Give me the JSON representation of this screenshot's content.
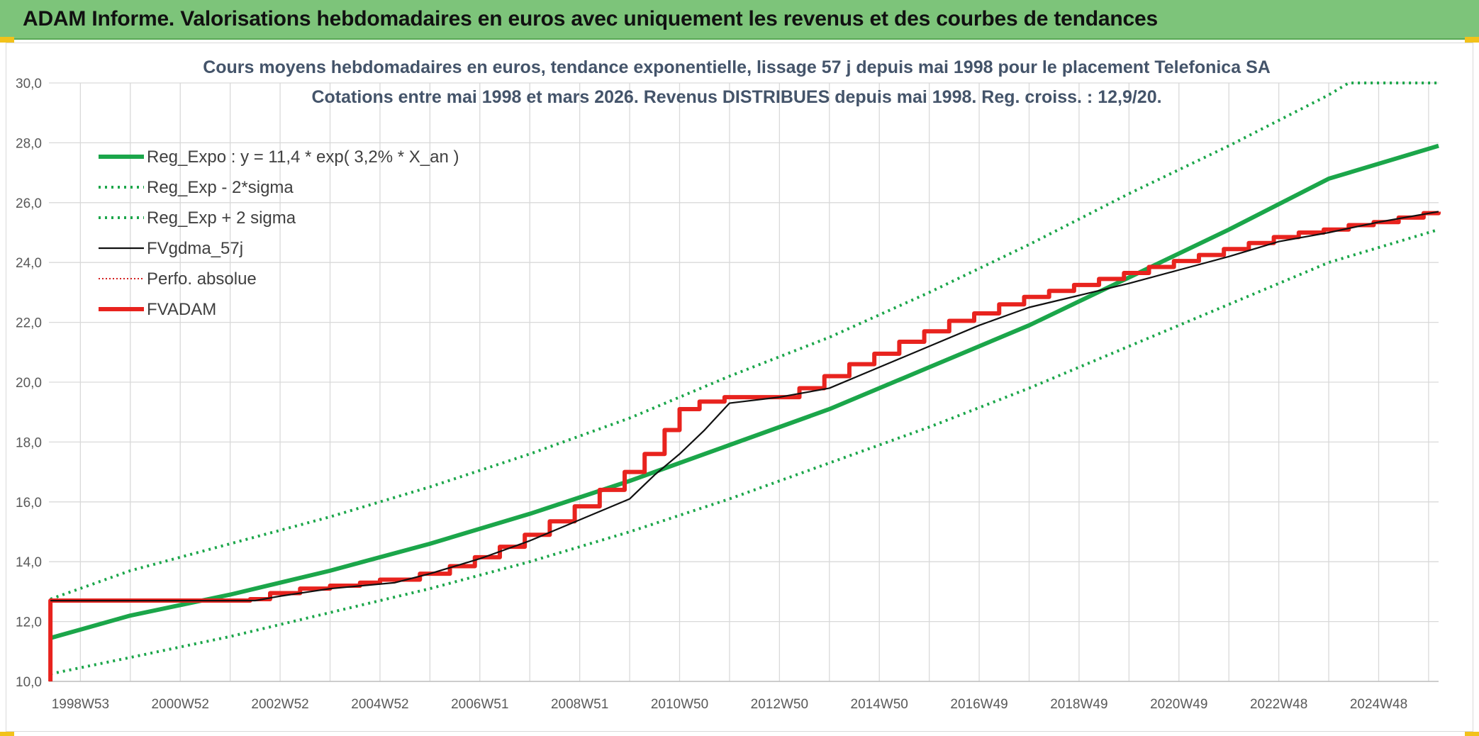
{
  "banner": {
    "title": "ADAM Informe. Valorisations hebdomadaires en euros avec uniquement les revenus et des courbes de tendances"
  },
  "colors": {
    "banner_bg": "#7dc47a",
    "trend_green": "#1ba64a",
    "fvadam_red": "#e8231e",
    "fvgdma_black": "#111111",
    "perfo_red": "#d42020",
    "grid": "#d9d9d9",
    "corner_accent": "#f2c21a"
  },
  "chart_data": {
    "type": "line",
    "title_line1": "Cours moyens hebdomadaires en euros, tendance exponentielle, lissage 57 j depuis mai 1998 pour le placement Telefonica SA",
    "title_line2": "Cotations entre mai 1998 et mars 2026. Revenus DISTRIBUES depuis mai 1998. Reg. croiss. : 12,9/20.",
    "xlabel": "",
    "ylabel": "",
    "xlim": [
      1998.37,
      2026.2
    ],
    "ylim": [
      10,
      30
    ],
    "y_ticks": [
      "10,0",
      "12,0",
      "14,0",
      "16,0",
      "18,0",
      "20,0",
      "22,0",
      "24,0",
      "26,0",
      "28,0",
      "30,0"
    ],
    "x_tick_labels": [
      "1998W53",
      "2000W52",
      "2002W52",
      "2004W52",
      "2006W51",
      "2008W51",
      "2010W50",
      "2012W50",
      "2014W50",
      "2016W49",
      "2018W49",
      "2020W49",
      "2022W48",
      "2024W48"
    ],
    "x_tick_positions": [
      1999.0,
      2001.0,
      2003.0,
      2005.0,
      2007.0,
      2009.0,
      2011.0,
      2013.0,
      2015.0,
      2017.0,
      2019.0,
      2021.0,
      2023.0,
      2025.0
    ],
    "grid": true,
    "legend_placement": "top-left",
    "legend": [
      {
        "label": "Reg_Expo : y = 11,4 * exp( 3,2% *  X_an )",
        "style": "solid-thick",
        "color": "#1ba64a"
      },
      {
        "label": "Reg_Exp - 2*sigma",
        "style": "dotted",
        "color": "#1ba64a"
      },
      {
        "label": "Reg_Exp + 2 sigma",
        "style": "dotted",
        "color": "#1ba64a"
      },
      {
        "label": "FVgdma_57j",
        "style": "solid",
        "color": "#111111"
      },
      {
        "label": "Perfo. absolue",
        "style": "dotted-thin",
        "color": "#d42020"
      },
      {
        "label": "FVADAM",
        "style": "solid-thick",
        "color": "#e8231e"
      }
    ],
    "series": [
      {
        "name": "Reg_Expo : y = 11,4 * exp( 3,2% *  X_an )",
        "x": [
          1998.4,
          2000.0,
          2002.0,
          2004.0,
          2006.0,
          2008.0,
          2010.0,
          2012.0,
          2014.0,
          2016.0,
          2018.0,
          2020.0,
          2022.0,
          2024.0,
          2026.2
        ],
        "values": [
          11.45,
          12.2,
          12.9,
          13.7,
          14.6,
          15.6,
          16.7,
          17.9,
          19.1,
          20.5,
          21.9,
          23.5,
          25.1,
          26.8,
          27.9
        ]
      },
      {
        "name": "Reg_Exp - 2*sigma",
        "x": [
          1998.4,
          2000.0,
          2002.0,
          2004.0,
          2006.0,
          2008.0,
          2010.0,
          2012.0,
          2014.0,
          2016.0,
          2018.0,
          2020.0,
          2022.0,
          2024.0,
          2026.2
        ],
        "values": [
          10.25,
          10.8,
          11.5,
          12.3,
          13.1,
          14.0,
          15.0,
          16.1,
          17.3,
          18.5,
          19.8,
          21.2,
          22.6,
          24.0,
          25.1
        ]
      },
      {
        "name": "Reg_Exp + 2 sigma",
        "x": [
          1998.4,
          2000.0,
          2002.0,
          2004.0,
          2006.0,
          2008.0,
          2010.0,
          2012.0,
          2014.0,
          2016.0,
          2018.0,
          2020.0,
          2022.0,
          2024.0,
          2024.4,
          2026.2
        ],
        "values": [
          12.75,
          13.7,
          14.6,
          15.5,
          16.5,
          17.6,
          18.8,
          20.2,
          21.5,
          23.0,
          24.6,
          26.3,
          27.9,
          29.6,
          30.0,
          30.0
        ]
      },
      {
        "name": "FVgdma_57j",
        "x": [
          1998.4,
          2002.5,
          2003.0,
          2004.0,
          2005.3,
          2006.0,
          2007.0,
          2008.0,
          2009.0,
          2010.0,
          2010.5,
          2011.0,
          2011.5,
          2012.0,
          2013.0,
          2014.0,
          2015.0,
          2016.0,
          2017.0,
          2018.0,
          2019.0,
          2020.0,
          2021.0,
          2022.0,
          2023.0,
          2024.0,
          2025.0,
          2026.2
        ],
        "values": [
          12.7,
          12.7,
          12.85,
          13.1,
          13.3,
          13.6,
          14.1,
          14.7,
          15.4,
          16.1,
          16.9,
          17.6,
          18.4,
          19.3,
          19.5,
          19.8,
          20.5,
          21.2,
          21.9,
          22.5,
          22.9,
          23.3,
          23.75,
          24.2,
          24.7,
          25.0,
          25.35,
          25.7
        ]
      },
      {
        "name": "FVADAM",
        "x": [
          1998.4,
          1998.4,
          2002.4,
          2002.8,
          2003.4,
          2004.0,
          2004.6,
          2005.0,
          2005.8,
          2006.4,
          2006.9,
          2007.4,
          2007.9,
          2008.4,
          2008.9,
          2009.4,
          2009.9,
          2010.3,
          2010.7,
          2011.0,
          2011.4,
          2011.9,
          2013.0,
          2013.4,
          2013.9,
          2014.4,
          2014.9,
          2015.4,
          2015.9,
          2016.4,
          2016.9,
          2017.4,
          2017.9,
          2018.4,
          2018.9,
          2019.4,
          2019.9,
          2020.4,
          2020.9,
          2021.4,
          2021.9,
          2022.4,
          2022.9,
          2023.4,
          2023.9,
          2024.4,
          2024.9,
          2025.4,
          2025.9,
          2026.2
        ],
        "values": [
          10.0,
          12.7,
          12.75,
          12.95,
          13.1,
          13.2,
          13.3,
          13.4,
          13.6,
          13.85,
          14.15,
          14.5,
          14.9,
          15.35,
          15.85,
          16.4,
          17.0,
          17.6,
          18.4,
          19.1,
          19.35,
          19.5,
          19.5,
          19.8,
          20.2,
          20.6,
          20.95,
          21.35,
          21.7,
          22.05,
          22.3,
          22.6,
          22.85,
          23.05,
          23.25,
          23.45,
          23.65,
          23.85,
          24.05,
          24.25,
          24.45,
          24.65,
          24.85,
          25.0,
          25.1,
          25.25,
          25.35,
          25.5,
          25.65,
          25.7
        ]
      }
    ]
  }
}
